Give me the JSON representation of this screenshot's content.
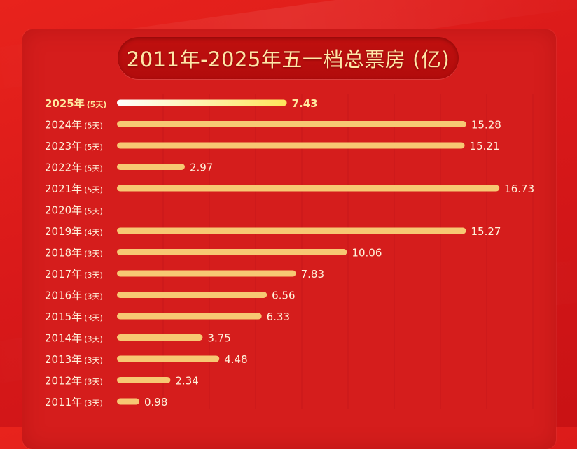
{
  "chart_data": {
    "type": "bar",
    "orientation": "horizontal",
    "title": "2011年-2025年五一档总票房 (亿)",
    "categories": [
      {
        "year": "2025年",
        "days": "(5天)"
      },
      {
        "year": "2024年",
        "days": "(5天)"
      },
      {
        "year": "2023年",
        "days": "(5天)"
      },
      {
        "year": "2022年",
        "days": "(5天)"
      },
      {
        "year": "2021年",
        "days": "(5天)"
      },
      {
        "year": "2020年",
        "days": "(5天)"
      },
      {
        "year": "2019年",
        "days": "(4天)"
      },
      {
        "year": "2018年",
        "days": "(3天)"
      },
      {
        "year": "2017年",
        "days": "(3天)"
      },
      {
        "year": "2016年",
        "days": "(3天)"
      },
      {
        "year": "2015年",
        "days": "(3天)"
      },
      {
        "year": "2014年",
        "days": "(3天)"
      },
      {
        "year": "2013年",
        "days": "(3天)"
      },
      {
        "year": "2012年",
        "days": "(3天)"
      },
      {
        "year": "2011年",
        "days": "(3天)"
      }
    ],
    "values": [
      7.43,
      15.28,
      15.21,
      2.97,
      16.73,
      null,
      15.27,
      10.06,
      7.83,
      6.56,
      6.33,
      3.75,
      4.48,
      2.34,
      0.98
    ],
    "value_labels": [
      "7.43",
      "15.28",
      "15.21",
      "2.97",
      "16.73",
      "",
      "15.27",
      "10.06",
      "7.83",
      "6.56",
      "6.33",
      "3.75",
      "4.48",
      "2.34",
      "0.98"
    ],
    "highlight_index": 0,
    "xlim": [
      0,
      17
    ],
    "grid": true,
    "colors": {
      "bar": "#f7c873",
      "bar_highlight_start": "#ffffff",
      "bar_highlight_end": "#ffe45a",
      "label": "#fff3dc",
      "label_highlight": "#ffe9a0",
      "title": "#ffe7a8",
      "grid": "#c7171a"
    }
  }
}
